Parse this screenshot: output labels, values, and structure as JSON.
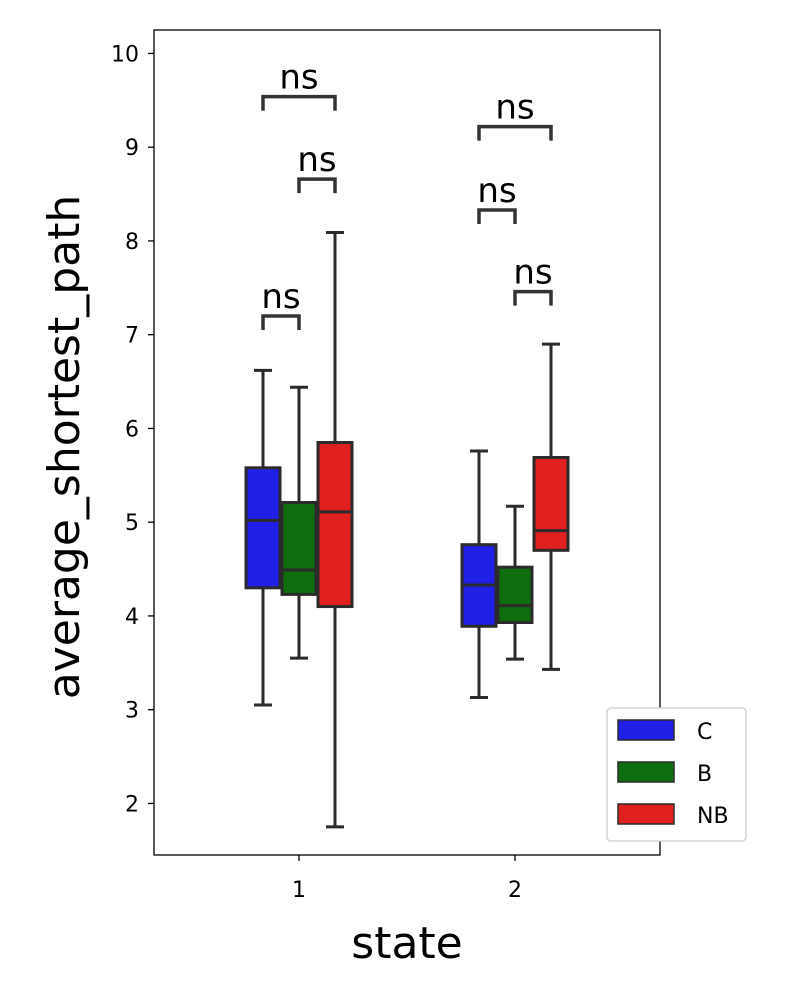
{
  "chart_data": {
    "type": "box",
    "xlabel": "state",
    "ylabel": "average_shortest_path",
    "categories": [
      "1",
      "2"
    ],
    "ylim": [
      1.45,
      10.25
    ],
    "yticks": [
      "2",
      "3",
      "4",
      "5",
      "6",
      "7",
      "8",
      "9",
      "10"
    ],
    "legend_position": "lower-right",
    "series": [
      {
        "name": "C",
        "color": "#1f1fe6",
        "boxes": [
          {
            "whisker_low": 3.05,
            "q1": 4.3,
            "median": 5.02,
            "q3": 5.58,
            "whisker_high": 6.62
          },
          {
            "whisker_low": 3.13,
            "q1": 3.89,
            "median": 4.33,
            "q3": 4.76,
            "whisker_high": 5.76
          }
        ]
      },
      {
        "name": "B",
        "color": "#0e6e0e",
        "boxes": [
          {
            "whisker_low": 3.55,
            "q1": 4.23,
            "median": 4.49,
            "q3": 5.21,
            "whisker_high": 6.44
          },
          {
            "whisker_low": 3.54,
            "q1": 3.93,
            "median": 4.11,
            "q3": 4.52,
            "whisker_high": 5.17
          }
        ]
      },
      {
        "name": "NB",
        "color": "#e01f1f",
        "boxes": [
          {
            "whisker_low": 1.75,
            "q1": 4.1,
            "median": 5.11,
            "q3": 5.85,
            "whisker_high": 8.09
          },
          {
            "whisker_low": 3.43,
            "q1": 4.7,
            "median": 4.91,
            "q3": 5.69,
            "whisker_high": 6.9
          }
        ]
      }
    ],
    "annotations": [
      {
        "category": "1",
        "from": "C",
        "to": "B",
        "text": "ns",
        "y": 7.2
      },
      {
        "category": "1",
        "from": "B",
        "to": "NB",
        "text": "ns",
        "y": 8.66
      },
      {
        "category": "1",
        "from": "C",
        "to": "NB",
        "text": "ns",
        "y": 9.54
      },
      {
        "category": "2",
        "from": "C",
        "to": "B",
        "text": "ns",
        "y": 8.33
      },
      {
        "category": "2",
        "from": "B",
        "to": "NB",
        "text": "ns",
        "y": 7.46
      },
      {
        "category": "2",
        "from": "C",
        "to": "NB",
        "text": "ns",
        "y": 9.22
      }
    ]
  }
}
